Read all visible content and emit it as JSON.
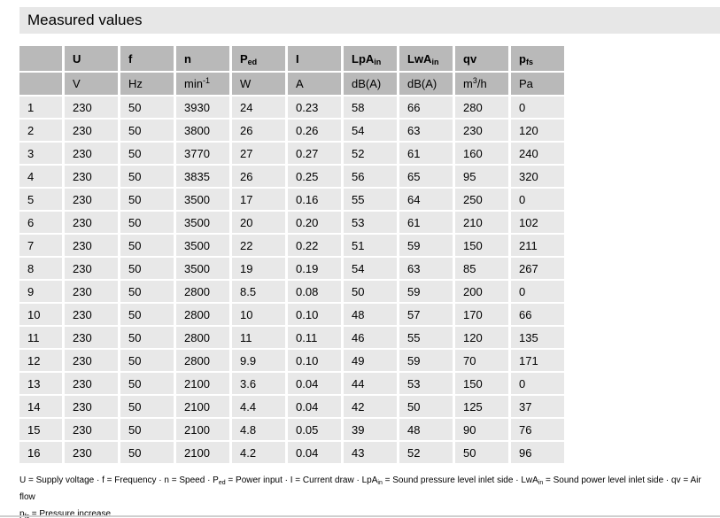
{
  "title": "Measured values",
  "table": {
    "header": [
      "",
      "U",
      "f",
      "n",
      "P_{ed}",
      "I",
      "LpA_{in}",
      "LwA_{in}",
      "qv",
      "p_{fs}"
    ],
    "units": [
      "",
      "V",
      "Hz",
      "min^{-1}",
      "W",
      "A",
      "dB(A)",
      "dB(A)",
      "m^{3}/h",
      "Pa"
    ],
    "rows": [
      [
        "1",
        "230",
        "50",
        "3930",
        "24",
        "0.23",
        "58",
        "66",
        "280",
        "0"
      ],
      [
        "2",
        "230",
        "50",
        "3800",
        "26",
        "0.26",
        "54",
        "63",
        "230",
        "120"
      ],
      [
        "3",
        "230",
        "50",
        "3770",
        "27",
        "0.27",
        "52",
        "61",
        "160",
        "240"
      ],
      [
        "4",
        "230",
        "50",
        "3835",
        "26",
        "0.25",
        "56",
        "65",
        "95",
        "320"
      ],
      [
        "5",
        "230",
        "50",
        "3500",
        "17",
        "0.16",
        "55",
        "64",
        "250",
        "0"
      ],
      [
        "6",
        "230",
        "50",
        "3500",
        "20",
        "0.20",
        "53",
        "61",
        "210",
        "102"
      ],
      [
        "7",
        "230",
        "50",
        "3500",
        "22",
        "0.22",
        "51",
        "59",
        "150",
        "211"
      ],
      [
        "8",
        "230",
        "50",
        "3500",
        "19",
        "0.19",
        "54",
        "63",
        "85",
        "267"
      ],
      [
        "9",
        "230",
        "50",
        "2800",
        "8.5",
        "0.08",
        "50",
        "59",
        "200",
        "0"
      ],
      [
        "10",
        "230",
        "50",
        "2800",
        "10",
        "0.10",
        "48",
        "57",
        "170",
        "66"
      ],
      [
        "11",
        "230",
        "50",
        "2800",
        "11",
        "0.11",
        "46",
        "55",
        "120",
        "135"
      ],
      [
        "12",
        "230",
        "50",
        "2800",
        "9.9",
        "0.10",
        "49",
        "59",
        "70",
        "171"
      ],
      [
        "13",
        "230",
        "50",
        "2100",
        "3.6",
        "0.04",
        "44",
        "53",
        "150",
        "0"
      ],
      [
        "14",
        "230",
        "50",
        "2100",
        "4.4",
        "0.04",
        "42",
        "50",
        "125",
        "37"
      ],
      [
        "15",
        "230",
        "50",
        "2100",
        "4.8",
        "0.05",
        "39",
        "48",
        "90",
        "76"
      ],
      [
        "16",
        "230",
        "50",
        "2100",
        "4.2",
        "0.04",
        "43",
        "52",
        "50",
        "96"
      ]
    ]
  },
  "footnote": {
    "line1": "U = Supply voltage · f = Frequency · n = Speed · P_{ed} = Power input · I = Current draw · LpA_{in} = Sound pressure level inlet side · LwA_{in} = Sound power level inlet side · qv = Air flow",
    "line2": "p_{fs} = Pressure increase"
  },
  "colors": {
    "title_bar_bg": "#e7e7e7",
    "header_cell_bg": "#b9b9b9",
    "data_cell_bg": "#e8e8e8",
    "bottom_rule": "#cfcfcf",
    "text": "#000000"
  }
}
